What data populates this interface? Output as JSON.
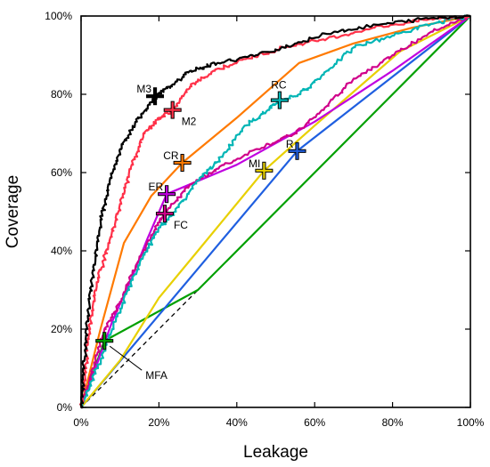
{
  "chart_data": {
    "type": "line",
    "title": "",
    "xlabel": "Leakage",
    "ylabel": "Coverage",
    "xlim": [
      0,
      100
    ],
    "ylim": [
      0,
      100
    ],
    "x_ticks": [
      0,
      20,
      40,
      60,
      80,
      100
    ],
    "y_ticks": [
      0,
      20,
      40,
      60,
      80,
      100
    ],
    "x_tick_labels": [
      "0%",
      "20%",
      "40%",
      "60%",
      "80%",
      "100%"
    ],
    "y_tick_labels": [
      "0%",
      "20%",
      "40%",
      "60%",
      "80%",
      "100%"
    ],
    "grid": false,
    "diagonal": {
      "style": "dashed",
      "color": "#000000",
      "points": [
        [
          0,
          0
        ],
        [
          100,
          100
        ]
      ]
    },
    "series": [
      {
        "key": "mfa",
        "color": "#00a000",
        "noisy": false,
        "points": [
          [
            0,
            0
          ],
          [
            6,
            17
          ],
          [
            30,
            30
          ],
          [
            50,
            50
          ],
          [
            75,
            75
          ],
          [
            100,
            100
          ]
        ]
      },
      {
        "key": "r",
        "color": "#1f5fe0",
        "noisy": false,
        "points": [
          [
            0,
            0
          ],
          [
            55.5,
            65.5
          ],
          [
            100,
            100
          ]
        ]
      },
      {
        "key": "mi",
        "color": "#e8d000",
        "noisy": false,
        "points": [
          [
            0,
            0
          ],
          [
            10,
            12
          ],
          [
            20,
            28
          ],
          [
            30,
            40
          ],
          [
            47,
            60.5
          ],
          [
            60,
            72
          ],
          [
            82,
            91
          ],
          [
            100,
            100
          ]
        ]
      },
      {
        "key": "er",
        "color": "#c000e0",
        "noisy": false,
        "points": [
          [
            0,
            0
          ],
          [
            3,
            8
          ],
          [
            8,
            22
          ],
          [
            13,
            33
          ],
          [
            17,
            43
          ],
          [
            22,
            54.5
          ],
          [
            40,
            62
          ],
          [
            60,
            73
          ],
          [
            80,
            86
          ],
          [
            100,
            100
          ]
        ]
      },
      {
        "key": "cr",
        "color": "#ff7a00",
        "noisy": false,
        "points": [
          [
            0,
            0
          ],
          [
            5,
            20
          ],
          [
            11,
            42
          ],
          [
            18,
            54
          ],
          [
            26,
            62.5
          ],
          [
            40,
            74
          ],
          [
            56,
            88
          ],
          [
            70,
            93
          ],
          [
            85,
            97
          ],
          [
            100,
            100
          ]
        ]
      },
      {
        "key": "fc",
        "color": "#d0008a",
        "noisy": true,
        "points": [
          [
            0,
            0
          ],
          [
            3,
            10
          ],
          [
            6,
            20
          ],
          [
            10,
            27
          ],
          [
            14,
            36
          ],
          [
            18,
            44
          ],
          [
            21.5,
            49.5
          ],
          [
            28,
            57
          ],
          [
            35,
            61
          ],
          [
            45,
            66
          ],
          [
            55,
            70
          ],
          [
            62,
            76
          ],
          [
            70,
            84
          ],
          [
            80,
            90
          ],
          [
            90,
            96
          ],
          [
            100,
            100
          ]
        ]
      },
      {
        "key": "rc",
        "color": "#00b5b5",
        "noisy": true,
        "points": [
          [
            0,
            0
          ],
          [
            4,
            10
          ],
          [
            8,
            20
          ],
          [
            12,
            30
          ],
          [
            16,
            39
          ],
          [
            20,
            46
          ],
          [
            24,
            50
          ],
          [
            30,
            58
          ],
          [
            36,
            64
          ],
          [
            42,
            72
          ],
          [
            48,
            76
          ],
          [
            51,
            78.5
          ],
          [
            56,
            80
          ],
          [
            62,
            85
          ],
          [
            70,
            92
          ],
          [
            80,
            95
          ],
          [
            90,
            98
          ],
          [
            100,
            100
          ]
        ]
      },
      {
        "key": "m2",
        "color": "#ff3048",
        "noisy": true,
        "points": [
          [
            0,
            0
          ],
          [
            1,
            10
          ],
          [
            2,
            20
          ],
          [
            4,
            32
          ],
          [
            7,
            42
          ],
          [
            10,
            52
          ],
          [
            13,
            62
          ],
          [
            16,
            70
          ],
          [
            20,
            74
          ],
          [
            23.5,
            76
          ],
          [
            28,
            82
          ],
          [
            34,
            86
          ],
          [
            42,
            89
          ],
          [
            52,
            92
          ],
          [
            62,
            94
          ],
          [
            75,
            97
          ],
          [
            88,
            99
          ],
          [
            100,
            100
          ]
        ]
      },
      {
        "key": "m3",
        "color": "#000000",
        "noisy": true,
        "points": [
          [
            0,
            0
          ],
          [
            0.5,
            10
          ],
          [
            1.5,
            22
          ],
          [
            3,
            35
          ],
          [
            5,
            48
          ],
          [
            7,
            57
          ],
          [
            10,
            66
          ],
          [
            14,
            73
          ],
          [
            18,
            78
          ],
          [
            19,
            79.5
          ],
          [
            23,
            82
          ],
          [
            28,
            86
          ],
          [
            35,
            88
          ],
          [
            45,
            90
          ],
          [
            55,
            93
          ],
          [
            65,
            96
          ],
          [
            78,
            98
          ],
          [
            90,
            99.5
          ],
          [
            100,
            100
          ]
        ]
      }
    ],
    "markers": [
      {
        "label": "M3",
        "x": 19,
        "y": 79.5,
        "color": "#000000",
        "label_side": "left-above"
      },
      {
        "label": "M2",
        "x": 23.5,
        "y": 76,
        "color": "#ff3048",
        "label_side": "right-below"
      },
      {
        "label": "RC",
        "x": 51,
        "y": 78.5,
        "color": "#00b5b5",
        "label_side": "above"
      },
      {
        "label": "CR",
        "x": 26,
        "y": 62.5,
        "color": "#ff7a00",
        "label_side": "left-above"
      },
      {
        "label": "R",
        "x": 55.5,
        "y": 65.5,
        "color": "#1f5fe0",
        "label_side": "left-above"
      },
      {
        "label": "MI",
        "x": 47,
        "y": 60.5,
        "color": "#e8d000",
        "label_side": "left-above"
      },
      {
        "label": "ER",
        "x": 22,
        "y": 54.5,
        "color": "#c000e0",
        "label_side": "left-above"
      },
      {
        "label": "FC",
        "x": 21.5,
        "y": 49.5,
        "color": "#d0008a",
        "label_side": "right-below"
      },
      {
        "label": "MFA",
        "x": 6,
        "y": 17,
        "color": "#00a000",
        "label_side": "leader"
      }
    ]
  }
}
